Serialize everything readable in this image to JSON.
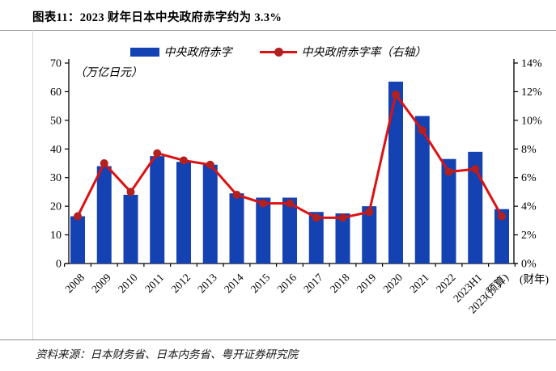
{
  "title": "图表11：2023 财年日本中央政府赤字约为 3.3%",
  "source": "资料来源：日本财务省、日本内务省、粤开证券研究院",
  "legend": {
    "bar_label": "中央政府赤字",
    "line_label": "中央政府赤字率（右轴）"
  },
  "unit_label": "（万亿日元）",
  "x_axis_unit": "(财年)",
  "colors": {
    "bar": "#1442b2",
    "line": "#dd1111",
    "marker": "#b22020",
    "axis": "#000000"
  },
  "chart_data": {
    "type": "bar",
    "title": "2023 财年日本中央政府赤字约为 3.3%",
    "categories": [
      "2008",
      "2009",
      "2010",
      "2011",
      "2012",
      "2013",
      "2014",
      "2015",
      "2016",
      "2017",
      "2018",
      "2019",
      "2020",
      "2021",
      "2022",
      "2023H1",
      "2023(预算)"
    ],
    "series": [
      {
        "name": "中央政府赤字",
        "type": "bar",
        "axis": "left",
        "unit": "万亿日元",
        "values": [
          16.5,
          34.0,
          24.0,
          37.5,
          35.5,
          34.5,
          24.5,
          23.0,
          23.0,
          18.0,
          17.5,
          20.0,
          63.5,
          51.5,
          36.5,
          39.0,
          19.0
        ]
      },
      {
        "name": "中央政府赤字率（右轴）",
        "type": "line",
        "axis": "right",
        "unit": "%",
        "values": [
          3.3,
          7.0,
          5.0,
          7.7,
          7.2,
          6.9,
          4.8,
          4.2,
          4.2,
          3.2,
          3.2,
          3.6,
          11.8,
          9.3,
          6.4,
          6.6,
          3.3
        ]
      }
    ],
    "left_axis": {
      "min": 0,
      "max": 70,
      "step": 10,
      "label": "（万亿日元）"
    },
    "right_axis": {
      "min": 0,
      "max": 14,
      "step": 2,
      "suffix": "%"
    },
    "xlabel": "(财年)",
    "grid": false,
    "legend_position": "top-center"
  }
}
